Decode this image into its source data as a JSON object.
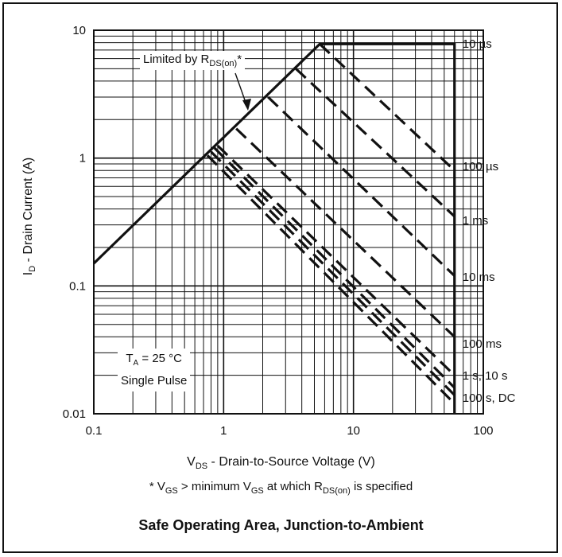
{
  "chart_data": {
    "type": "line",
    "title": "Safe Operating Area, Junction-to-Ambient",
    "xlabel_main": "V",
    "xlabel_sub": "DS",
    "xlabel_rest": " - Drain-to-Source Voltage (V)",
    "ylabel_main": "I",
    "ylabel_sub": "D",
    "ylabel_rest": " - Drain Current (A)",
    "x_scale": "log",
    "y_scale": "log",
    "xlim": [
      0.1,
      100
    ],
    "ylim": [
      0.01,
      10
    ],
    "x_ticks": [
      "0.1",
      "1",
      "10",
      "100"
    ],
    "y_ticks": [
      "0.01",
      "0.1",
      "1",
      "10"
    ],
    "grid": true,
    "footnote": {
      "p1": "* V",
      "s1": "GS",
      "p2": " > minimum V",
      "s2": "GS",
      "p3": " at which R",
      "s3": "DS(on)",
      "p4": " is specified"
    },
    "annotations": {
      "limit_prefix": "Limited by R",
      "limit_sub": "DS(on)",
      "limit_suffix": "*",
      "ta_prefix": "T",
      "ta_sub": "A",
      "ta_suffix": " = 25 °C",
      "pulse": "Single Pulse"
    },
    "boundary": {
      "rds_on_line": [
        [
          0.1,
          0.15
        ],
        [
          5.5,
          7.8
        ]
      ],
      "current_limit": 7.8,
      "voltage_limit": 60
    },
    "series": [
      {
        "name": "10 µs",
        "points": [
          [
            5.5,
            7.8
          ],
          [
            60,
            0.8
          ]
        ]
      },
      {
        "name": "100 µs",
        "points": [
          [
            3.6,
            5.0
          ],
          [
            60,
            0.35
          ]
        ]
      },
      {
        "name": "1 ms",
        "points": [
          [
            2.2,
            3.0
          ],
          [
            60,
            0.12
          ]
        ]
      },
      {
        "name": "10 ms",
        "points": [
          [
            1.25,
            1.7
          ],
          [
            60,
            0.04
          ]
        ]
      },
      {
        "name": "100 ms",
        "points": [
          [
            0.9,
            1.25
          ],
          [
            60,
            0.02
          ]
        ]
      },
      {
        "name": "1 s, 10 s",
        "points": [
          [
            0.85,
            1.2
          ],
          [
            60,
            0.016
          ]
        ]
      },
      {
        "name": "100 s, DC",
        "points": [
          [
            0.8,
            1.12
          ],
          [
            60,
            0.014
          ]
        ]
      }
    ],
    "extra_dashed": [
      {
        "points": [
          [
            0.75,
            1.05
          ],
          [
            60,
            0.012
          ]
        ]
      }
    ]
  }
}
